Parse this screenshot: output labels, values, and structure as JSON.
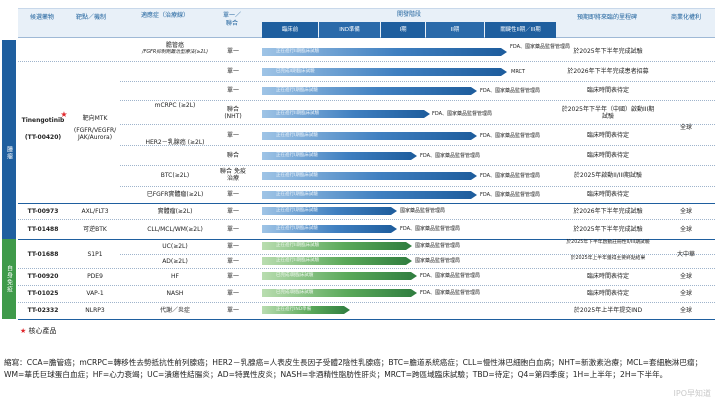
{
  "header": {
    "col_drug": "候選藥物",
    "col_target": "靶點／機制",
    "col_indication": "適應症（治療線）",
    "col_regimen": "單一／聯合",
    "col_progress": "開發階段",
    "stages": [
      "臨床前",
      "IND準備",
      "I期",
      "II期",
      "關鍵性II期／III期"
    ],
    "col_milestone": "預期即將來臨的里程碑",
    "col_rights": "商業化權利"
  },
  "side_labels": {
    "oncology": "腫瘤",
    "autoimmune": "自身免疫"
  },
  "drugs": {
    "tinengotinib": {
      "name": "Tinengotinib",
      "code": "(TT-00420)",
      "mechanism": "靶向MTK",
      "mechanism_detail": "(FGFR/VEGFR/ JAK/Aurora)",
      "rights": "全球"
    },
    "tt00973": {
      "name": "TT-00973",
      "target": "AXL/FLT3",
      "indication": "實體瘤(≥2L)",
      "regimen": "單一",
      "milestone": "於2026年下半年完成試驗",
      "rights": "全球"
    },
    "tt01488": {
      "name": "TT-01488",
      "target": "可逆BTK",
      "indication": "CLL/MCL/WM(≥2L)",
      "regimen": "單一",
      "milestone": "於2025年下半年完成試驗",
      "rights": "全球"
    },
    "tt01688": {
      "name": "TT-01688",
      "target": "S1P1",
      "rights": "大中華"
    },
    "tt00920": {
      "name": "TT-00920",
      "target": "PDE9",
      "indication": "HF",
      "regimen": "單一",
      "milestone": "臨床時間表待定",
      "rights": "全球"
    },
    "tt01025": {
      "name": "TT-01025",
      "target": "VAP-1",
      "indication": "NASH",
      "regimen": "單一",
      "milestone": "臨床時間表待定",
      "rights": "全球"
    },
    "tt02332": {
      "name": "TT-02332",
      "target": "NLRP3",
      "indication": "代謝／炎症",
      "regimen": "單一",
      "milestone": "於2025年上半年提交IND",
      "rights": "全球"
    }
  },
  "tin_rows": [
    {
      "indication": "膽管癌",
      "sub": "/FGFR抑制劑難治型療法(≥2L)",
      "regimen": "單一",
      "milestone": "於2025年下半年完成試驗"
    },
    {
      "indication": "",
      "sub": "",
      "regimen": "單一",
      "milestone": "於2026年下半年完成患者招募"
    },
    {
      "indication": "",
      "sub": "",
      "regimen": "單一",
      "milestone": "臨床時間表待定"
    },
    {
      "indication": "mCRPC (≥2L)",
      "sub": "",
      "regimen": "聯合 (NHT)",
      "milestone": "於2025年下半年（中國）啟動III期試驗"
    },
    {
      "indication": "HER2－乳腺癌 (≥2L)",
      "sub": "",
      "regimen": "單一",
      "milestone": "臨床時間表待定"
    },
    {
      "indication": "",
      "sub": "",
      "regimen": "聯合",
      "milestone": "臨床時間表待定"
    },
    {
      "indication": "BTC(≥2L)",
      "sub": "",
      "regimen": "聯合 免疫治療",
      "milestone": "於2025年啟動II/III期試驗"
    },
    {
      "indication": "已FGFR實體瘤(≥2L)",
      "sub": "",
      "regimen": "單一",
      "milestone": "臨床時間表待定"
    }
  ],
  "tt01688_rows": [
    {
      "indication": "UC(≥2L)",
      "regimen": "單一",
      "milestone": "於2025年下半年啟動註冊性II/III期試驗"
    },
    {
      "indication": "AD(≥2L)",
      "regimen": "單一",
      "milestone": "於2025年上半年獲得主要終點結果"
    }
  ],
  "bar_labels": {
    "cholangio_1": "FDA、國家藥品監督管理局",
    "cholangio_2": "MRCT",
    "fda_nmpa": "FDA、國家藥品監督管理局",
    "nmpa": "國家藥品監督管理局",
    "fda": "FDA"
  },
  "bar_inner_texts": [
    "正在進行II期臨床試驗",
    "已完成II期臨床試驗",
    "正在進行I期臨床試驗",
    "正在進行II期臨床試驗",
    "正在進行I期臨床試驗",
    "正在進行I期臨床試驗",
    "正在進行I期臨床試驗",
    "正在進行I期臨床試驗",
    "正在進行I期臨床試驗",
    "正在進行I期臨床試驗",
    "正在進行II期臨床試驗",
    "正在進行II期臨床試驗",
    "已完成I期臨床試驗",
    "已完成I期臨床試驗",
    "正在進行IND準備"
  ],
  "legend": {
    "star": "★",
    "text": "核心產品"
  },
  "abbreviations": "縮寫：CCA=膽管癌；mCRPC=轉移性去勢抵抗性前列腺癌；HER2－乳腺癌=人表皮生長因子受體2陰性乳腺癌；BTC=膽道系統癌症；CLL=慢性淋巴細胞白血病；NHT=新激素治療；MCL=套細胞淋巴瘤；WM=華氏巨球蛋白血症；HF=心力衰竭；UC=潰瘍性結腸炎；AD=特異性皮炎；NASH=非酒精性脂肪性肝炎；MRCT=跨區域臨床試驗；TBD=待定；Q4=第四季度；1H=上半年；2H=下半年。",
  "watermark": "IPO早知道",
  "colors": {
    "header_blue": "#1f5f9f",
    "oncology": "#1f5f9f",
    "autoimmune": "#3f9a4a",
    "star": "#e0262b"
  }
}
